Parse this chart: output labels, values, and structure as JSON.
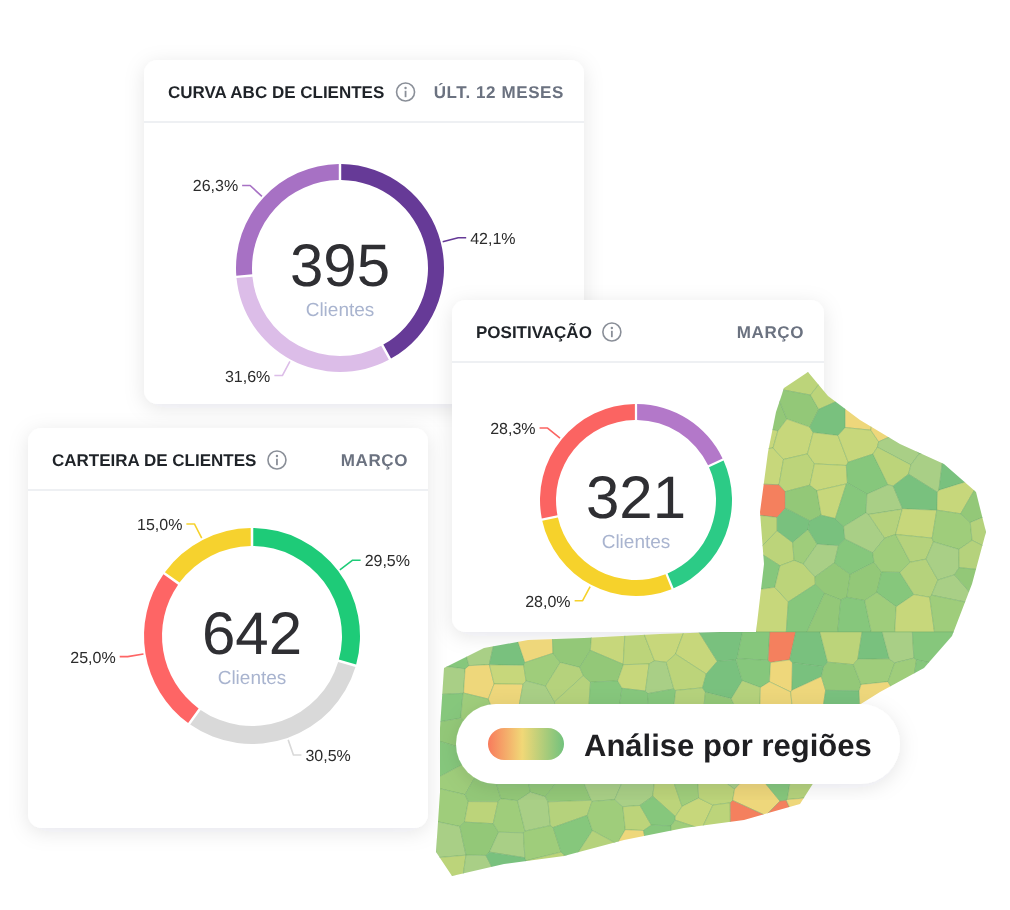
{
  "chart_data": [
    {
      "type": "donut",
      "title": "CURVA ABC DE CLIENTES",
      "subtitle": "ÚLT. 12 MESES",
      "categories": [
        null,
        null,
        null
      ],
      "values": [
        42.1,
        31.6,
        26.3
      ],
      "colors": [
        "#663a97",
        "#dcbde8",
        "#a771c4"
      ],
      "value_labels": [
        "42,1%",
        "31,6%",
        "26,3%"
      ],
      "annotations": [
        "395",
        "Clientes"
      ]
    },
    {
      "type": "donut",
      "title": "POSITIVAÇÃO",
      "subtitle": "MARÇO",
      "categories": [
        null,
        null,
        null,
        null
      ],
      "values": [
        18.0,
        25.7,
        28.0,
        28.3
      ],
      "colors": [
        "#b378c9",
        "#2ccb86",
        "#f6d22b",
        "#fb6462"
      ],
      "value_labels": [
        null,
        null,
        "28,0%",
        "28,3%"
      ],
      "annotations": [
        "321",
        "Clientes"
      ]
    },
    {
      "type": "donut",
      "title": "CARTEIRA DE CLIENTES",
      "subtitle": "MARÇO",
      "categories": [
        null,
        null,
        null,
        null
      ],
      "values": [
        29.5,
        30.5,
        25.0,
        15.0
      ],
      "colors": [
        "#1ecb78",
        "#d9d9d9",
        "#fe6565",
        "#f6d22e"
      ],
      "value_labels": [
        "29,5%",
        "30,5%",
        "25,0%",
        "15,0%"
      ],
      "annotations": [
        "642",
        "Clientes"
      ]
    },
    {
      "type": "other",
      "title": "Análise por regiões"
    }
  ]
}
